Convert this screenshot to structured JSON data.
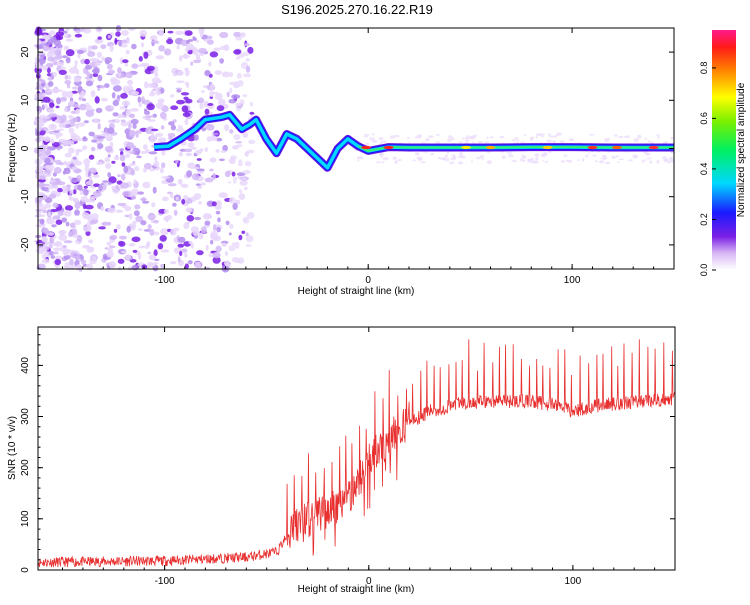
{
  "title": "S196.2025.270.16.22.R19",
  "chart_data": [
    {
      "type": "heatmap",
      "xlabel": "Height of straight line (km)",
      "ylabel": "Frequency (Hz)",
      "xlim": [
        -162,
        150
      ],
      "ylim": [
        -25,
        25
      ],
      "xticks": [
        -100,
        0,
        100
      ],
      "xtick_labels": [
        "-100",
        "0",
        "100"
      ],
      "yticks": [
        20,
        10,
        0,
        -10,
        -20
      ],
      "ytick_labels": [
        "20",
        "10",
        "0",
        "-10",
        "-20"
      ],
      "ridge": {
        "x": [
          -105,
          -98,
          -92,
          -85,
          -80,
          -72,
          -68,
          -62,
          -58,
          -55,
          -50,
          -45,
          -40,
          -35,
          -30,
          -25,
          -20,
          -15,
          -10,
          -5,
          0,
          10,
          20,
          40,
          60,
          80,
          100,
          120,
          140,
          150
        ],
        "y": [
          0.3,
          0.5,
          2,
          4,
          6,
          6.5,
          7,
          4,
          5,
          6,
          2,
          -1,
          3,
          2,
          0,
          -2,
          -4,
          0,
          2,
          0.5,
          -0.5,
          0.3,
          0.2,
          0.2,
          0.2,
          0.3,
          0.3,
          0.2,
          0.2,
          0.2
        ]
      },
      "colorbar": {
        "label": "Normalized spectral amplitude",
        "range": [
          0,
          0.95
        ],
        "ticks": [
          0.0,
          0.2,
          0.4,
          0.6,
          0.8
        ],
        "tick_labels": [
          "0.0",
          "0.2",
          "0.4",
          "0.6",
          "0.8"
        ]
      }
    },
    {
      "type": "line",
      "xlabel": "Height of straight line (km)",
      "ylabel": "SNR (10 * v/v)",
      "xlim": [
        -162,
        150
      ],
      "ylim": [
        0,
        475
      ],
      "xticks": [
        -100,
        0,
        100
      ],
      "xtick_labels": [
        "-100",
        "0",
        "100"
      ],
      "yticks": [
        0,
        100,
        200,
        300,
        400
      ],
      "ytick_labels": [
        "0",
        "100",
        "200",
        "300",
        "400"
      ],
      "color": "#e83030",
      "trend": {
        "x": [
          -162,
          -100,
          -60,
          -45,
          -38,
          -30,
          -20,
          -12,
          -5,
          0,
          10,
          20,
          30,
          45,
          60,
          80,
          95,
          100,
          110,
          130,
          150
        ],
        "y": [
          15,
          18,
          25,
          35,
          80,
          100,
          120,
          140,
          170,
          210,
          260,
          290,
          310,
          325,
          330,
          330,
          320,
          310,
          320,
          330,
          335
        ]
      },
      "spike_start_x": -40,
      "spike_spacing": 3.5,
      "spike_height": [
        -40,
        200,
        20,
        420,
        150,
        450
      ]
    }
  ]
}
